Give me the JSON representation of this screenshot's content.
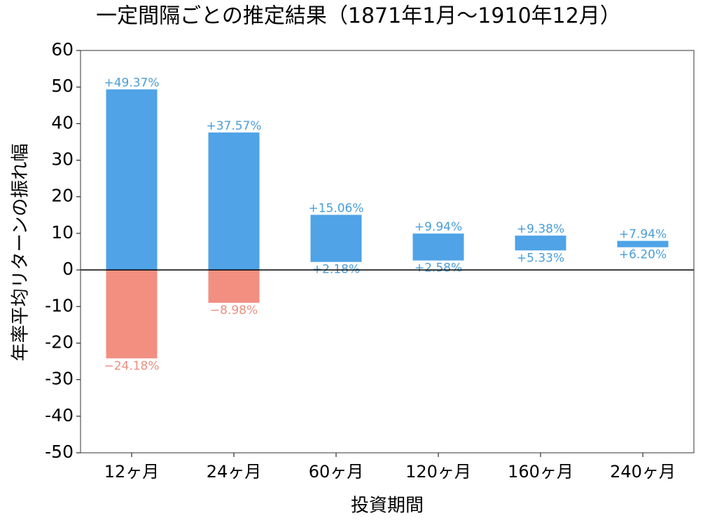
{
  "chart_data": {
    "type": "range_bar",
    "title": "一定間隔ごとの推定結果（1871年1月～1910年12月）",
    "x_label": "投資期間",
    "y_label": "年率平均リターンの振れ幅",
    "categories": [
      "12ヶ月",
      "24ヶ月",
      "60ヶ月",
      "120ヶ月",
      "160ヶ月",
      "240ヶ月"
    ],
    "high": {
      "values": [
        49.37,
        37.57,
        15.06,
        9.94,
        9.38,
        7.94
      ],
      "value_labels": [
        "+49.37%",
        "+37.57%",
        "+15.06%",
        "+9.94%",
        "+9.38%",
        "+7.94%"
      ],
      "color": "#4fa3e6",
      "label_color": "#4a9dd6"
    },
    "low": {
      "values": [
        -24.18,
        -8.98,
        2.18,
        2.58,
        5.33,
        6.2
      ],
      "value_labels": [
        "−24.18%",
        "−8.98%",
        "+2.18%",
        "+2.58%",
        "+5.33%",
        "+6.20%"
      ],
      "color": "#f28f80",
      "label_color": "#e8907f"
    },
    "ylim": [
      -50,
      60
    ],
    "yticks": [
      -50,
      -40,
      -30,
      -20,
      -10,
      0,
      10,
      20,
      30,
      40,
      50,
      60
    ],
    "zero_line": true
  }
}
